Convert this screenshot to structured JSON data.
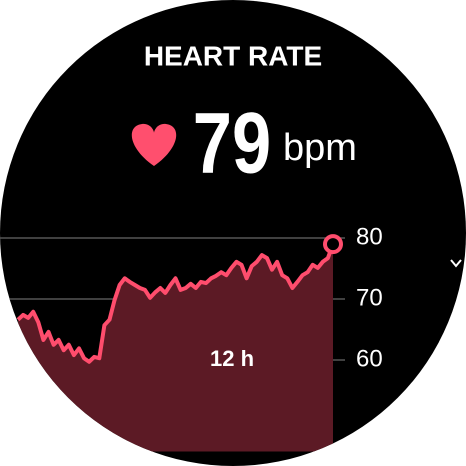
{
  "header": {
    "title": "HEART RATE",
    "value": "79",
    "unit": "bpm"
  },
  "chart_data": {
    "type": "area",
    "color": "#ff4d6d",
    "fill": "#5c1a25",
    "annotation": "12 h",
    "values": [
      66.6,
      67.4,
      66.9,
      67.9,
      66.2,
      63.3,
      64.6,
      62.5,
      63.3,
      61.6,
      62.5,
      60.8,
      61.9,
      60.3,
      59.7,
      60.5,
      60.3,
      65.7,
      66.6,
      69.8,
      72.3,
      73.4,
      72.8,
      72.3,
      71.8,
      71.5,
      70.2,
      71.1,
      71.8,
      71.0,
      72.3,
      73.4,
      71.5,
      71.8,
      72.5,
      71.8,
      72.8,
      72.6,
      73.4,
      73.8,
      74.4,
      73.9,
      75.1,
      76.1,
      75.6,
      73.4,
      75.4,
      76.1,
      77.2,
      76.7,
      74.8,
      76.1,
      73.9,
      73.4,
      71.8,
      72.8,
      73.9,
      74.4,
      75.6,
      75.1,
      76.1,
      76.7,
      79
    ],
    "ylim": [
      45,
      85
    ],
    "yticks": [
      60,
      70,
      80
    ],
    "grid": true
  }
}
